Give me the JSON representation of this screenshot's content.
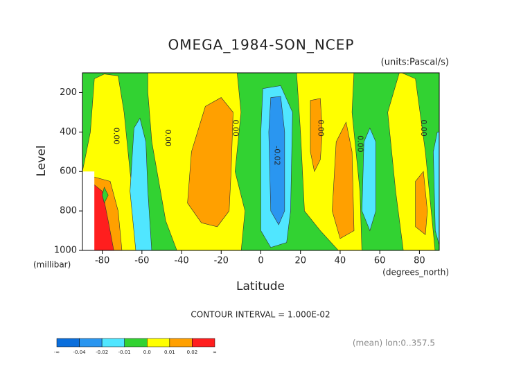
{
  "chart_data": {
    "type": "contour",
    "title": "OMEGA_1984-SON_NCEP",
    "units": "(units:Pascal/s)",
    "ylabel": "Level",
    "yunits": "(millibar)",
    "xlabel": "Latitude",
    "xunits": "(degrees_north)",
    "xlim": [
      -90,
      90
    ],
    "xticks": [
      -80,
      -60,
      -40,
      -20,
      0,
      20,
      40,
      60,
      80
    ],
    "ylim": [
      1000,
      100
    ],
    "yticks": [
      200,
      400,
      600,
      800,
      1000
    ],
    "contour_labels": [
      "0.00",
      "0.00",
      "0.00",
      "-0.02",
      "0.00",
      "0.00",
      "0.00"
    ],
    "contour_interval": "CONTOUR INTERVAL = 1.000E-02",
    "footnote": "(mean) lon:0..357.5",
    "colorbar": {
      "colors": [
        "#0a6edc",
        "#2a96f0",
        "#50e6ff",
        "#32d232",
        "#ffff00",
        "#ffa000",
        "#ff1e1e"
      ],
      "labels": [
        "-∞",
        "-0.04",
        "-0.02",
        "-0.01",
        "0.0",
        "0.01",
        "0.02",
        "∞"
      ]
    }
  }
}
